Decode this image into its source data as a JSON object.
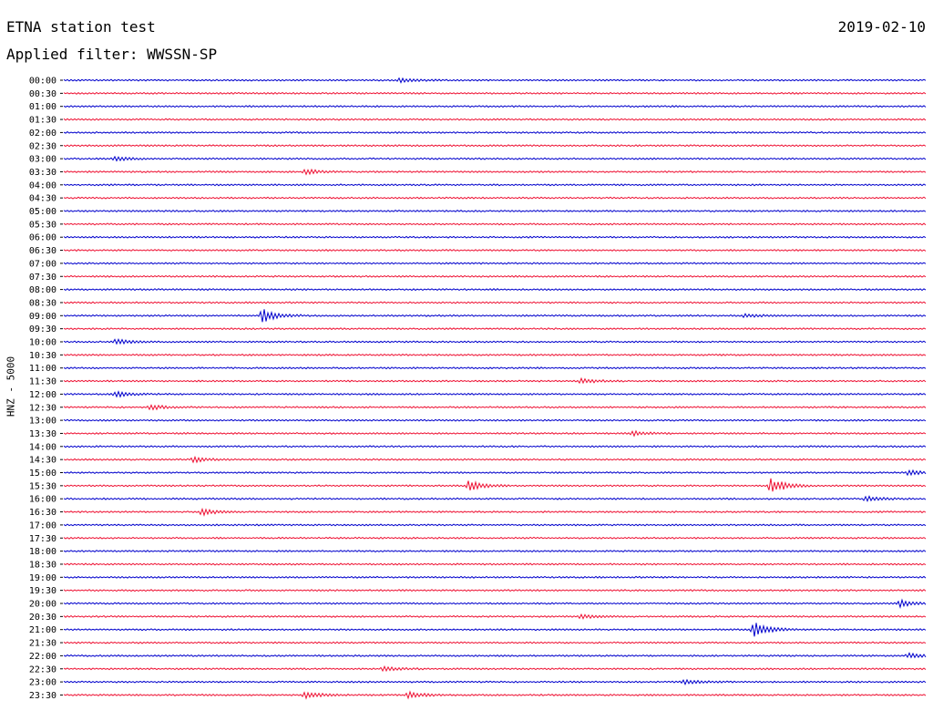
{
  "header": {
    "title": "ETNA station test",
    "date": "2019-02-10",
    "filter": "Applied filter: WWSSN-SP"
  },
  "channel_label": "HNZ - 5000",
  "colors": {
    "trace_a": "#0000cc",
    "trace_b": "#ee1133"
  },
  "trace_times": [
    "00:00",
    "00:30",
    "01:00",
    "01:30",
    "02:00",
    "02:30",
    "03:00",
    "03:30",
    "04:00",
    "04:30",
    "05:00",
    "05:30",
    "06:00",
    "06:30",
    "07:00",
    "07:30",
    "08:00",
    "08:30",
    "09:00",
    "09:30",
    "10:00",
    "10:30",
    "11:00",
    "11:30",
    "12:00",
    "12:30",
    "13:00",
    "13:30",
    "14:00",
    "14:30",
    "15:00",
    "15:30",
    "16:00",
    "16:30",
    "17:00",
    "17:30",
    "18:00",
    "18:30",
    "19:00",
    "19:30",
    "20:00",
    "20:30",
    "21:00",
    "21:30",
    "22:00",
    "22:30",
    "23:00",
    "23:30"
  ],
  "events": [
    {
      "row": 0,
      "pos": 0.39,
      "amp": 2.5
    },
    {
      "row": 6,
      "pos": 0.06,
      "amp": 2.5
    },
    {
      "row": 7,
      "pos": 0.28,
      "amp": 3
    },
    {
      "row": 18,
      "pos": 0.23,
      "amp": 8
    },
    {
      "row": 18,
      "pos": 0.79,
      "amp": 2
    },
    {
      "row": 20,
      "pos": 0.06,
      "amp": 3
    },
    {
      "row": 23,
      "pos": 0.6,
      "amp": 3
    },
    {
      "row": 24,
      "pos": 0.06,
      "amp": 3
    },
    {
      "row": 25,
      "pos": 0.1,
      "amp": 3
    },
    {
      "row": 27,
      "pos": 0.66,
      "amp": 2.5
    },
    {
      "row": 29,
      "pos": 0.15,
      "amp": 3
    },
    {
      "row": 30,
      "pos": 0.98,
      "amp": 3
    },
    {
      "row": 31,
      "pos": 0.47,
      "amp": 6
    },
    {
      "row": 31,
      "pos": 0.82,
      "amp": 9
    },
    {
      "row": 32,
      "pos": 0.93,
      "amp": 3
    },
    {
      "row": 33,
      "pos": 0.16,
      "amp": 4
    },
    {
      "row": 40,
      "pos": 0.97,
      "amp": 4
    },
    {
      "row": 41,
      "pos": 0.6,
      "amp": 2.5
    },
    {
      "row": 42,
      "pos": 0.8,
      "amp": 9
    },
    {
      "row": 44,
      "pos": 0.98,
      "amp": 3
    },
    {
      "row": 45,
      "pos": 0.37,
      "amp": 3
    },
    {
      "row": 46,
      "pos": 0.72,
      "amp": 3
    },
    {
      "row": 47,
      "pos": 0.28,
      "amp": 4
    },
    {
      "row": 47,
      "pos": 0.4,
      "amp": 3.5
    }
  ]
}
